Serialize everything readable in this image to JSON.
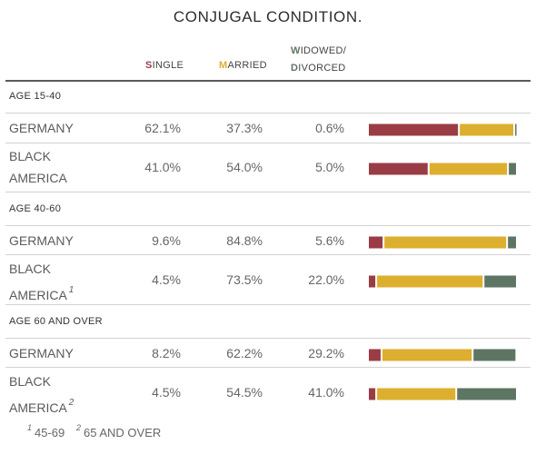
{
  "title": "CONJUGAL CONDITION.",
  "headers": {
    "single_initial": "S",
    "single_rest": "INGLE",
    "married_initial": "M",
    "married_rest": "ARRIED",
    "widowed_line1_initial": "W",
    "widowed_line1_rest": "IDOWED/",
    "widowed_line2_initial": "D",
    "widowed_line2_rest": "IVORCED"
  },
  "sections": [
    {
      "label": "AGE 15-40"
    },
    {
      "label": "AGE 40-60"
    },
    {
      "label": "AGE 60 AND OVER"
    }
  ],
  "rows": [
    {
      "line1": "GERMANY",
      "line2": "",
      "note": "",
      "single": "62.1%",
      "married": "37.3%",
      "widowed": "0.6%"
    },
    {
      "line1": "BLACK",
      "line2": "AMERICA",
      "note": "",
      "single": "41.0%",
      "married": "54.0%",
      "widowed": "5.0%"
    },
    {
      "line1": "GERMANY",
      "line2": "",
      "note": "",
      "single": "9.6%",
      "married": "84.8%",
      "widowed": "5.6%"
    },
    {
      "line1": "BLACK",
      "line2": "AMERICA",
      "note": "1",
      "single": "4.5%",
      "married": "73.5%",
      "widowed": "22.0%"
    },
    {
      "line1": "GERMANY",
      "line2": "",
      "note": "",
      "single": "8.2%",
      "married": "62.2%",
      "widowed": "29.2%"
    },
    {
      "line1": "BLACK",
      "line2": "AMERICA",
      "note": "2",
      "single": "4.5%",
      "married": "54.5%",
      "widowed": "41.0%"
    }
  ],
  "footnotes": [
    {
      "mark": "1",
      "text": "45-69"
    },
    {
      "mark": "2",
      "text": "65 AND OVER"
    }
  ],
  "colors": {
    "single": "#9a3c46",
    "married": "#dcaf2e",
    "widowed": "#5e7564"
  },
  "chart_data": {
    "type": "bar",
    "stacked": true,
    "orientation": "horizontal",
    "title": "CONJUGAL CONDITION.",
    "categories": [
      "AGE 15-40 GERMANY",
      "AGE 15-40 BLACK AMERICA",
      "AGE 40-60 GERMANY",
      "AGE 40-60 BLACK AMERICA",
      "AGE 60 AND OVER GERMANY",
      "AGE 60 AND OVER BLACK AMERICA"
    ],
    "series": [
      {
        "name": "SINGLE",
        "values": [
          62.1,
          41.0,
          9.6,
          4.5,
          8.2,
          4.5
        ]
      },
      {
        "name": "MARRIED",
        "values": [
          37.3,
          54.0,
          84.8,
          73.5,
          62.2,
          54.5
        ]
      },
      {
        "name": "WIDOWED/DIVORCED",
        "values": [
          0.6,
          5.0,
          5.6,
          22.0,
          29.2,
          41.0
        ]
      }
    ],
    "xlim": [
      0,
      100
    ],
    "unit": "%",
    "grid": false
  }
}
